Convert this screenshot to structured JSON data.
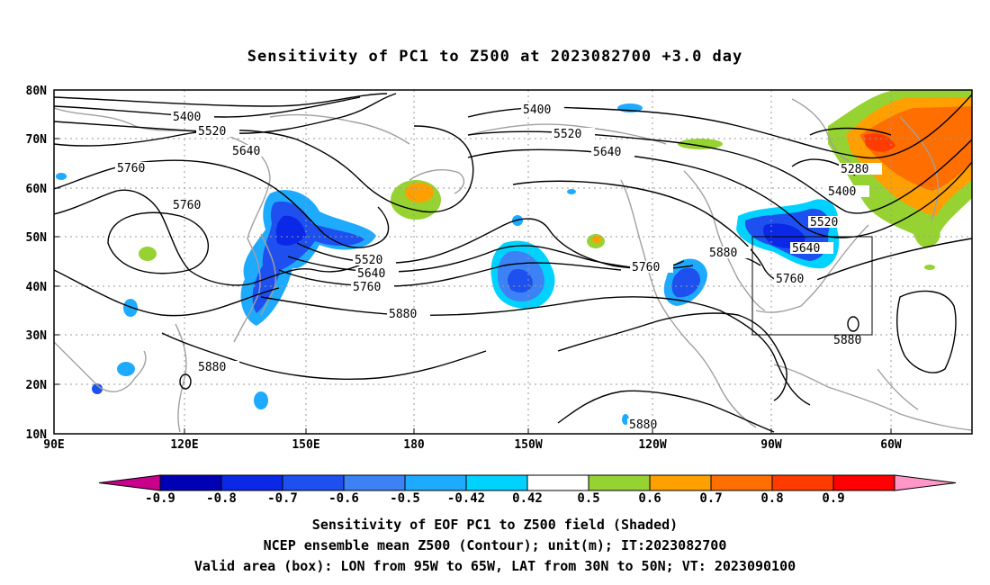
{
  "title": "Sensitivity of PC1 to Z500 at 2023082700 +3.0 day",
  "map": {
    "lon_labels": [
      "90E",
      "120E",
      "150E",
      "180",
      "150W",
      "120W",
      "90W",
      "60W"
    ],
    "lat_labels": [
      "80N",
      "70N",
      "60N",
      "50N",
      "40N",
      "30N",
      "20N",
      "10N"
    ],
    "contour_labels": [
      "5400",
      "5520",
      "5640",
      "5760",
      "5760",
      "5400",
      "5520",
      "5640",
      "5760",
      "5880",
      "5520",
      "5640",
      "5760",
      "5880",
      "5880",
      "5880",
      "5280",
      "5400",
      "5520",
      "5640",
      "5760",
      "5880"
    ],
    "valid_box": {
      "lon_west": "95W",
      "lon_east": "65W",
      "lat_south": "30N",
      "lat_north": "50N"
    }
  },
  "colorbar": {
    "labels": [
      "-0.9",
      "-0.8",
      "-0.7",
      "-0.6",
      "-0.5",
      "-0.42",
      "0.42",
      "0.5",
      "0.6",
      "0.7",
      "0.8",
      "0.9"
    ],
    "colors": [
      "#c8008c",
      "#0000b4",
      "#0a28e6",
      "#1e50f0",
      "#3c82f5",
      "#1eaaff",
      "#00d2ff",
      "#ffffff",
      "#96d232",
      "#ffa000",
      "#ff6e00",
      "#ff3c00",
      "#ff0000",
      "#ff96c8"
    ]
  },
  "captions": {
    "line1": "Sensitivity of EOF PC1 to Z500 field (Shaded)",
    "line2": "NCEP ensemble mean Z500 (Contour); unit(m); IT:2023082700",
    "line3": "Valid area (box): LON from 95W to 65W, LAT from 30N to 50N; VT: 2023090100"
  }
}
